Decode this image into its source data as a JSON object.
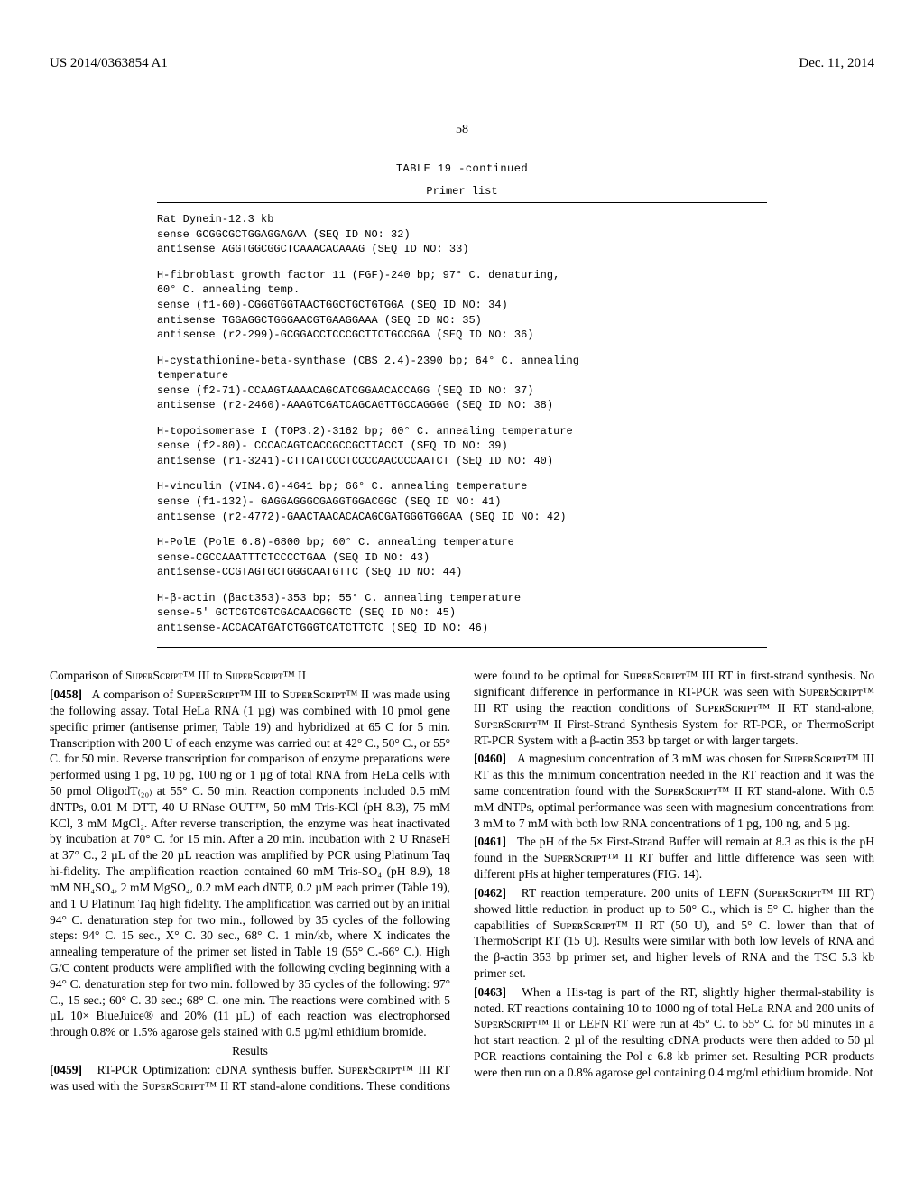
{
  "header": {
    "left": "US 2014/0363854 A1",
    "right": "Dec. 11, 2014"
  },
  "page_number": "58",
  "table": {
    "title": "TABLE 19 -continued",
    "subtitle": "Primer list",
    "blocks": [
      "Rat Dynein-12.3 kb\nsense GCGGCGCTGGAGGAGAA (SEQ ID NO: 32)\nantisense AGGTGGCGGCTCAAACACAAAG (SEQ ID NO: 33)",
      "H-fibroblast growth factor 11 (FGF)-240 bp; 97° C. denaturing,\n60° C. annealing temp.\nsense (f1-60)-CGGGTGGTAACTGGCTGCTGTGGA (SEQ ID NO: 34)\nantisense TGGAGGCTGGGAACGTGAAGGAAA (SEQ ID NO: 35)\nantisense (r2-299)-GCGGACCTCCCGCTTCTGCCGGA (SEQ ID NO: 36)",
      "H-cystathionine-beta-synthase (CBS 2.4)-2390 bp; 64° C. annealing\ntemperature\nsense (f2-71)-CCAAGTAAAACAGCATCGGAACACCAGG (SEQ ID NO: 37)\nantisense (r2-2460)-AAAGTCGATCAGCAGTTGCCAGGGG (SEQ ID NO: 38)",
      "H-topoisomerase I (TOP3.2)-3162 bp; 60° C. annealing temperature\nsense (f2-80)- CCCACAGTCACCGCCGCTTACCT (SEQ ID NO: 39)\nantisense (r1-3241)-CTTCATCCCTCCCCAACCCCAATCT (SEQ ID NO: 40)",
      "H-vinculin (VIN4.6)-4641 bp; 66° C. annealing temperature\nsense (f1-132)- GAGGAGGGCGAGGTGGACGGC (SEQ ID NO: 41)\nantisense (r2-4772)-GAACTAACACACAGCGATGGGTGGGAA (SEQ ID NO: 42)",
      "H-PolE (PolE 6.8)-6800 bp; 60° C. annealing temperature\nsense-CGCCAAATTTCTCCCCTGAA (SEQ ID NO: 43)\nantisense-CCGTAGTGCTGGGCAATGTTC (SEQ ID NO: 44)",
      "H-β-actin (βact353)-353 bp; 55° C. annealing temperature\nsense-5' GCTCGTCGTCGACAACGGCTC (SEQ ID NO: 45)\nantisense-ACCACATGATCTGGGTCATCTTCTC (SEQ ID NO: 46)"
    ]
  },
  "body": {
    "comp_title_pre": "Comparison of S",
    "comp_title_sc1": "uper",
    "comp_title_mid1": "S",
    "comp_title_sc2": "cript",
    "comp_title_tm1": "™ III to S",
    "comp_title_sc3": "uper",
    "comp_title_mid2": "S",
    "comp_title_sc4": "cript",
    "comp_title_tm2": "™ II",
    "p0458_label": "[0458]",
    "p0458": "A comparison of SᴜᴘᴇʀSᴄʀɪᴘᴛ™ III to SᴜᴘᴇʀSᴄʀɪᴘᴛ™ II was made using the following assay. Total HeLa RNA (1 µg) was combined with 10 pmol gene specific primer (antisense primer, Table 19) and hybridized at 65 C for 5 min. Transcription with 200 U of each enzyme was carried out at 42° C., 50° C., or 55° C. for 50 min. Reverse transcription for comparison of enzyme preparations were performed using 1 pg, 10 pg, 100 ng or 1 µg of total RNA from HeLa cells with 50 pmol OligodT₍₂₀₎ at 55° C. 50 min. Reaction components included 0.5 mM dNTPs, 0.01 M DTT, 40 U RNase OUT™, 50 mM Tris-KCl (pH 8.3), 75 mM KCl, 3 mM MgCl₂. After reverse transcription, the enzyme was heat inactivated by incubation at 70° C. for 15 min. After a 20 min. incubation with 2 U RnaseH at 37° C., 2 µL of the 20 µL reaction was amplified by PCR using Platinum Taq hi-fidelity. The amplification reaction contained 60 mM Tris-SO₄ (pH 8.9), 18 mM NH₄SO₄, 2 mM MgSO₄, 0.2 mM each dNTP, 0.2 µM each primer (Table 19), and 1 U Platinum Taq high fidelity. The amplification was carried out by an initial 94° C. denaturation step for two min., followed by 35 cycles of the following steps: 94° C. 15 sec., X° C. 30 sec., 68° C. 1 min/kb, where X indicates the annealing temperature of the primer set listed in Table 19 (55° C.-66° C.). High G/C content products were amplified with the following cycling beginning with a 94° C. denaturation step for two min. followed by 35 cycles of the following: 97° C., 15 sec.; 60° C. 30 sec.; 68° C. one min. The reactions were combined with 5 µL 10× BlueJuice® and 20% (11 µL) of each reaction was electrophorsed through 0.8% or 1.5% agarose gels stained with 0.5 µg/ml ethidium bromide.",
    "results_title": "Results",
    "p0459_label": "[0459]",
    "p0459": "RT-PCR Optimization: cDNA synthesis buffer. SᴜᴘᴇʀSᴄʀɪᴘᴛ™ III RT was used with the SᴜᴘᴇʀSᴄʀɪᴘᴛ™ II RT stand-alone conditions. These conditions were found to be optimal for SᴜᴘᴇʀSᴄʀɪᴘᴛ™ III RT in first-strand synthesis. No significant difference in performance in RT-PCR was seen with SᴜᴘᴇʀSᴄʀɪᴘᴛ™ III RT using the reaction conditions of SᴜᴘᴇʀSᴄʀɪᴘᴛ™ II RT stand-alone, SᴜᴘᴇʀSᴄʀɪᴘᴛ™ II First-Strand Synthesis System for RT-PCR, or ThermoScript RT-PCR System with a β-actin 353 bp target or with larger targets.",
    "p0460_label": "[0460]",
    "p0460": "A magnesium concentration of 3 mM was chosen for SᴜᴘᴇʀSᴄʀɪᴘᴛ™ III RT as this the minimum concentration needed in the RT reaction and it was the same concentration found with the SᴜᴘᴇʀSᴄʀɪᴘᴛ™ II RT stand-alone. With 0.5 mM dNTPs, optimal performance was seen with magnesium concentrations from 3 mM to 7 mM with both low RNA concentrations of 1 pg, 100 ng, and 5 µg.",
    "p0461_label": "[0461]",
    "p0461": "The pH of the 5× First-Strand Buffer will remain at 8.3 as this is the pH found in the SᴜᴘᴇʀSᴄʀɪᴘᴛ™ II RT buffer and little difference was seen with different pHs at higher temperatures (FIG. 14).",
    "p0462_label": "[0462]",
    "p0462": "RT reaction temperature. 200 units of LEFN (SᴜᴘᴇʀSᴄʀɪᴘᴛ™ III RT) showed little reduction in product up to 50° C., which is 5° C. higher than the capabilities of SᴜᴘᴇʀSᴄʀɪᴘᴛ™ II RT (50 U), and 5° C. lower than that of ThermoScript RT (15 U). Results were similar with both low levels of RNA and the β-actin 353 bp primer set, and higher levels of RNA and the TSC 5.3 kb primer set.",
    "p0463_label": "[0463]",
    "p0463": "When a His-tag is part of the RT, slightly higher thermal-stability is noted. RT reactions containing 10 to 1000 ng of total HeLa RNA and 200 units of SᴜᴘᴇʀSᴄʀɪᴘᴛ™ II or LEFN RT were run at 45° C. to 55° C. for 50 minutes in a hot start reaction. 2 µl of the resulting cDNA products were then added to 50 µl PCR reactions containing the Pol ε 6.8 kb primer set. Resulting PCR products were then run on a 0.8% agarose gel containing 0.4 mg/ml ethidium bromide. Not"
  }
}
